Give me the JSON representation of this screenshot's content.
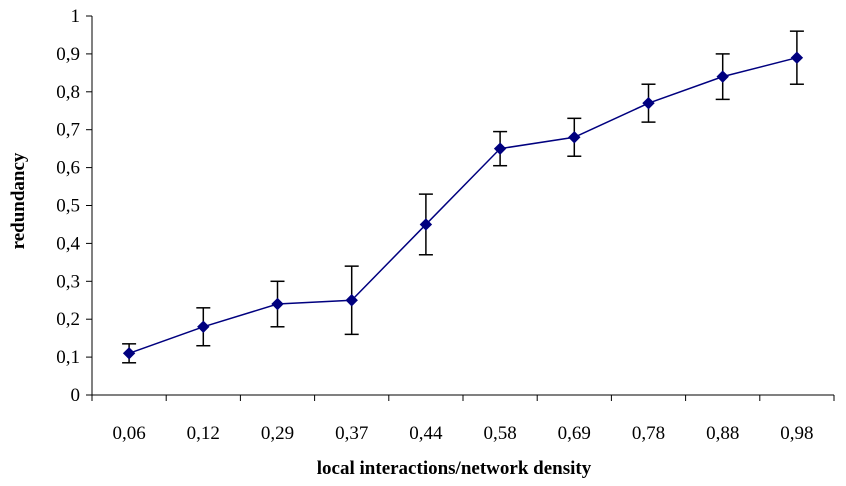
{
  "chart_data": {
    "type": "line",
    "title": "",
    "xlabel": "local interactions/network density",
    "ylabel": "redundancy",
    "categories": [
      "0,06",
      "0,12",
      "0,29",
      "0,37",
      "0,44",
      "0,58",
      "0,69",
      "0,78",
      "0,88",
      "0,98"
    ],
    "yticks": [
      "0",
      "0,1",
      "0,2",
      "0,3",
      "0,4",
      "0,5",
      "0,6",
      "0,7",
      "0,8",
      "0,9",
      "1"
    ],
    "ylim": [
      0,
      1
    ],
    "grid": false,
    "legend": "none",
    "series": [
      {
        "values": [
          0.11,
          0.18,
          0.24,
          0.25,
          0.45,
          0.65,
          0.68,
          0.77,
          0.84,
          0.89
        ],
        "error_low": [
          0.085,
          0.13,
          0.18,
          0.16,
          0.37,
          0.605,
          0.63,
          0.72,
          0.78,
          0.82
        ],
        "error_high": [
          0.135,
          0.23,
          0.3,
          0.34,
          0.53,
          0.695,
          0.73,
          0.82,
          0.9,
          0.96
        ],
        "color": "#00007f",
        "marker": "diamond"
      }
    ],
    "error_bar_color": "#000000",
    "axis_color": "#000000"
  }
}
